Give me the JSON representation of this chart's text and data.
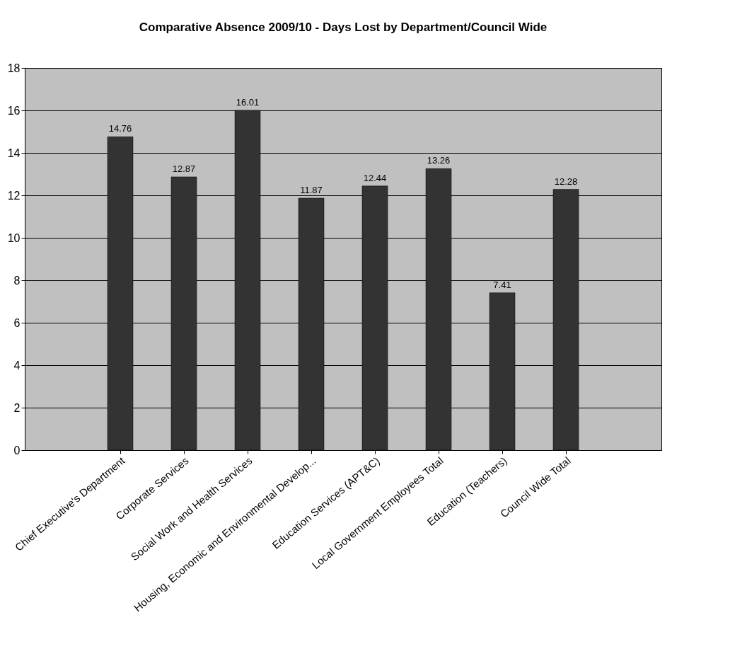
{
  "chart_data": {
    "type": "bar",
    "title": "Comparative Absence 2009/10 - Days Lost by Department/Council Wide",
    "categories": [
      "Chief Executive's Department",
      "Corporate Services",
      "Social Work and Health Services",
      "Housing, Economic and Environmental Develop...",
      "Education Services (APT&C)",
      "Local Government Employees Total",
      "Education (Teachers)",
      "Council Wide Total"
    ],
    "values": [
      14.76,
      12.87,
      16.01,
      11.87,
      12.44,
      13.26,
      7.41,
      12.28
    ],
    "color": "#333333",
    "ylim": [
      0,
      18
    ],
    "yticks": [
      0,
      2,
      4,
      6,
      8,
      10,
      12,
      14,
      16,
      18
    ],
    "grid": "y",
    "data_labels": true
  }
}
